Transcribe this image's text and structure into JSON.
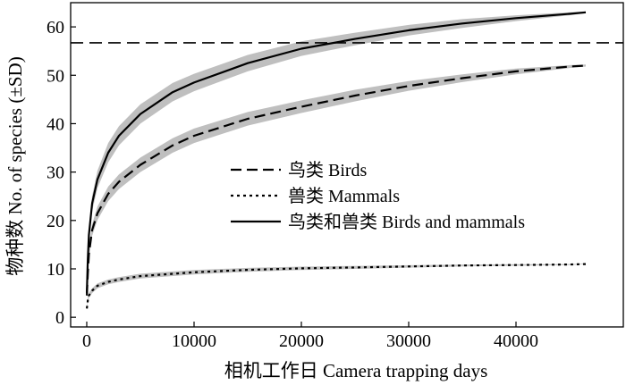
{
  "chart_data": {
    "type": "line",
    "xlabel": "相机工作日 Camera trapping days",
    "ylabel": "物种数 No. of species (±SD)",
    "xlim": [
      -1500,
      50000
    ],
    "ylim": [
      -2,
      65
    ],
    "xticks": [
      0,
      10000,
      20000,
      30000,
      40000
    ],
    "xtick_labels": [
      "0",
      "10000",
      "20000",
      "30000",
      "40000"
    ],
    "yticks": [
      0,
      10,
      20,
      30,
      40,
      50,
      60
    ],
    "ytick_labels": [
      "0",
      "10",
      "20",
      "30",
      "40",
      "50",
      "60"
    ],
    "grid": false,
    "legend_position": "center-right",
    "reference_line": {
      "y": 56.7,
      "style": "dashed"
    },
    "band_color": "#bfbfbf",
    "line_color": "#000000",
    "series": [
      {
        "name": "鸟类 Birds",
        "style": "dashed",
        "x": [
          10,
          100,
          200,
          500,
          1000,
          2000,
          3000,
          5000,
          8000,
          10000,
          15000,
          20000,
          25000,
          30000,
          35000,
          40000,
          45000,
          46500
        ],
        "y": [
          4.5,
          9,
          13,
          18,
          21.5,
          25.5,
          28,
          31.5,
          35.5,
          37.5,
          41,
          43.5,
          45.8,
          47.8,
          49.4,
          50.8,
          51.8,
          52
        ],
        "sd": [
          0.5,
          0.8,
          1,
          1.2,
          1.4,
          1.5,
          1.5,
          1.5,
          1.5,
          1.5,
          1.4,
          1.3,
          1.2,
          1,
          0.8,
          0.6,
          0.3,
          0.2
        ]
      },
      {
        "name": "兽类 Mammals",
        "style": "dotted",
        "x": [
          10,
          100,
          200,
          500,
          1000,
          2000,
          3000,
          5000,
          10000,
          15000,
          20000,
          25000,
          30000,
          35000,
          40000,
          45000,
          46500
        ],
        "y": [
          1.8,
          3.5,
          4.5,
          5.5,
          6.5,
          7.3,
          7.8,
          8.5,
          9.3,
          9.8,
          10.1,
          10.3,
          10.5,
          10.7,
          10.8,
          10.9,
          11
        ],
        "sd": [
          0.3,
          0.4,
          0.5,
          0.5,
          0.5,
          0.5,
          0.5,
          0.5,
          0.45,
          0.4,
          0.35,
          0.3,
          0.25,
          0.2,
          0.15,
          0.1,
          0.05
        ]
      },
      {
        "name": "鸟类和兽类 Birds and mammals",
        "style": "solid",
        "x": [
          10,
          100,
          200,
          500,
          1000,
          2000,
          3000,
          5000,
          8000,
          10000,
          15000,
          20000,
          25000,
          30000,
          35000,
          40000,
          45000,
          46500
        ],
        "y": [
          5,
          12,
          17,
          23.5,
          28.5,
          34,
          37.5,
          42,
          46.5,
          48.5,
          52.5,
          55.5,
          57.5,
          59.3,
          60.7,
          61.8,
          62.7,
          63
        ],
        "sd": [
          0.6,
          1,
          1.3,
          1.6,
          1.8,
          2,
          2,
          2,
          1.9,
          1.8,
          1.7,
          1.5,
          1.3,
          1.1,
          0.9,
          0.6,
          0.3,
          0.2
        ]
      }
    ]
  }
}
